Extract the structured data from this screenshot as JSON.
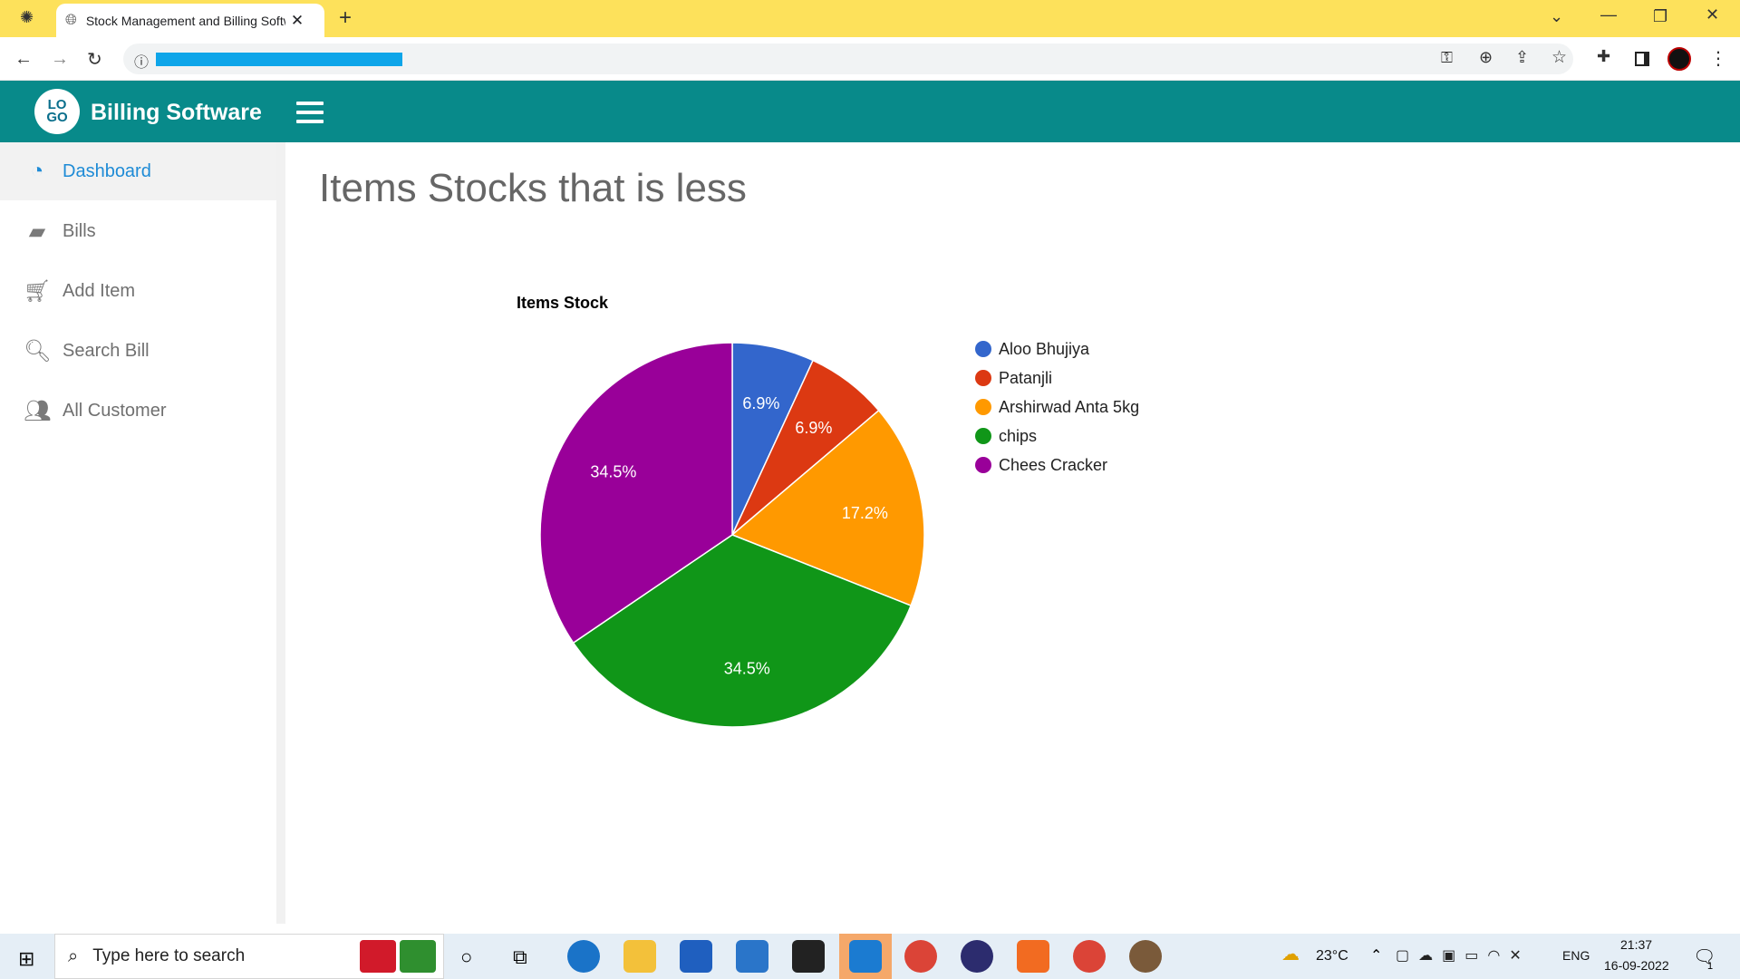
{
  "browser": {
    "tab_title": "Stock Management and Billing Software",
    "icons": [
      "chatgpt-icon",
      "globe-icon",
      "close-icon",
      "plus-icon",
      "back-icon",
      "forward-icon",
      "reload-icon",
      "info-icon",
      "key-icon",
      "zoom-icon",
      "share-icon",
      "star-icon",
      "puzzle-icon",
      "sidepanel-icon",
      "profile-avatar",
      "more-icon"
    ]
  },
  "app": {
    "brand": "Billing Software",
    "logo_text": "LO\nGO",
    "page_title": "Items Stocks that is less"
  },
  "sidebar": {
    "items": [
      {
        "label": "Dashboard",
        "icon": "dashboard-icon",
        "active": true
      },
      {
        "label": "Bills",
        "icon": "wallet-icon",
        "active": false
      },
      {
        "label": "Add Item",
        "icon": "cart-plus-icon",
        "active": false
      },
      {
        "label": "Search Bill",
        "icon": "search-icon",
        "active": false
      },
      {
        "label": "All Customer",
        "icon": "users-icon",
        "active": false
      }
    ]
  },
  "chart_data": {
    "type": "pie",
    "title": "Items Stock",
    "categories": [
      "Aloo Bhujiya",
      "Patanjli",
      "Arshirwad Anta 5kg",
      "chips",
      "Chees Cracker"
    ],
    "values": [
      6.9,
      6.9,
      17.2,
      34.5,
      34.5
    ],
    "labels": [
      "6.9%",
      "6.9%",
      "17.2%",
      "34.5%",
      "34.5%"
    ],
    "colors": [
      "#3366cc",
      "#dc3912",
      "#ff9900",
      "#109618",
      "#990099"
    ],
    "legend": "right"
  },
  "taskbar": {
    "search_placeholder": "Type here to search",
    "weather": "23°C",
    "language": "ENG",
    "time": "21:37",
    "date": "16-09-2022",
    "notification_count": "1"
  }
}
